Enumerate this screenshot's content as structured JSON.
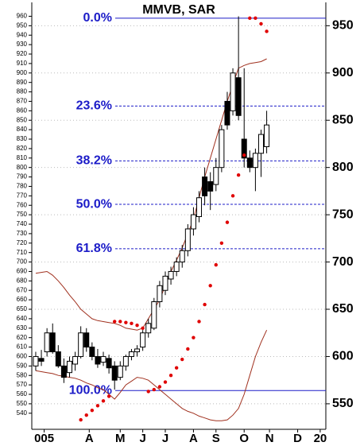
{
  "chart_data": {
    "type": "candlestick",
    "title": "MMVB, SAR",
    "candles": {
      "open": [
        590,
        598,
        605,
        625,
        605,
        590,
        583,
        592,
        600,
        625,
        610,
        600,
        594,
        598,
        590,
        578,
        590,
        600,
        605,
        610,
        625,
        630,
        658,
        670,
        682,
        690,
        700,
        712,
        735,
        748,
        790,
        785,
        782,
        800,
        870,
        860,
        895,
        830,
        810,
        800,
        815,
        822
      ],
      "high": [
        605,
        607,
        630,
        635,
        612,
        598,
        600,
        605,
        632,
        630,
        615,
        608,
        605,
        602,
        595,
        595,
        602,
        608,
        612,
        628,
        640,
        662,
        680,
        690,
        695,
        705,
        718,
        740,
        758,
        775,
        800,
        795,
        810,
        845,
        880,
        905,
        960,
        905,
        818,
        820,
        840,
        860
      ],
      "low": [
        585,
        590,
        600,
        603,
        588,
        572,
        578,
        585,
        598,
        605,
        596,
        588,
        590,
        582,
        565,
        575,
        585,
        596,
        600,
        606,
        620,
        628,
        652,
        665,
        676,
        685,
        694,
        706,
        728,
        742,
        760,
        755,
        775,
        795,
        840,
        855,
        850,
        800,
        795,
        775,
        790,
        815
      ],
      "close": [
        600,
        595,
        625,
        605,
        590,
        578,
        595,
        600,
        625,
        610,
        600,
        592,
        600,
        588,
        575,
        590,
        600,
        605,
        608,
        625,
        635,
        658,
        675,
        685,
        690,
        700,
        712,
        735,
        750,
        768,
        770,
        775,
        800,
        840,
        845,
        900,
        855,
        810,
        800,
        815,
        835,
        845
      ],
      "up_color": "#ffffff",
      "down_color": "#000000"
    },
    "sar": {
      "color": "#e00000",
      "values": [
        null,
        null,
        null,
        null,
        null,
        null,
        null,
        null,
        533,
        538,
        543,
        548,
        553,
        558,
        637,
        637,
        636,
        635,
        633,
        630,
        563,
        565,
        568,
        573,
        580,
        588,
        597,
        608,
        620,
        637,
        655,
        675,
        697,
        720,
        742,
        770,
        792,
        813,
        958,
        958,
        952,
        944
      ]
    },
    "bands": [
      {
        "color": "#a0301e",
        "values": [
          688,
          689,
          690,
          686,
          680,
          673,
          665,
          658,
          650,
          645,
          640,
          638,
          637,
          636,
          635,
          633,
          630,
          629,
          628,
          630,
          640,
          650,
          660,
          675,
          690,
          702,
          715,
          730,
          745,
          768,
          790,
          810,
          830,
          850,
          870,
          888,
          905,
          908,
          910,
          911,
          912,
          915
        ]
      },
      {
        "color": "#a0301e",
        "values": [
          585,
          584,
          583,
          582,
          580,
          579,
          578,
          577,
          575,
          572,
          570,
          567,
          565,
          560,
          555,
          562,
          570,
          574,
          578,
          577,
          575,
          570,
          565,
          560,
          555,
          550,
          545,
          542,
          540,
          537,
          535,
          533,
          532,
          532,
          533,
          538,
          545,
          560,
          580,
          600,
          615,
          628
        ]
      }
    ],
    "fib_levels": [
      {
        "label": "0.0%",
        "price": 958,
        "style": "solid"
      },
      {
        "label": "23.6%",
        "price": 865,
        "style": "dashed"
      },
      {
        "label": "38.2%",
        "price": 807,
        "style": "dashed"
      },
      {
        "label": "50.0%",
        "price": 761,
        "style": "dashed"
      },
      {
        "label": "61.8%",
        "price": 714,
        "style": "dashed"
      },
      {
        "label": "100.0%",
        "price": 564,
        "style": "solid"
      }
    ],
    "fib_color": "#1c1cc8",
    "xlim": [
      -0.7,
      51.5
    ],
    "xticks": [
      {
        "value": 1.5,
        "label": "005"
      },
      {
        "value": 9.5,
        "label": "A"
      },
      {
        "value": 15,
        "label": "M"
      },
      {
        "value": 19,
        "label": "J"
      },
      {
        "value": 23,
        "label": "J"
      },
      {
        "value": 28,
        "label": "A"
      },
      {
        "value": 32,
        "label": "S"
      },
      {
        "value": 37,
        "label": "O"
      },
      {
        "value": 41.5,
        "label": "N"
      },
      {
        "value": 46.5,
        "label": "D"
      },
      {
        "value": 50.5,
        "label": "20"
      }
    ],
    "ylim": [
      523,
      973
    ],
    "yticks": [
      540,
      550,
      560,
      570,
      580,
      590,
      600,
      610,
      620,
      630,
      640,
      650,
      660,
      670,
      680,
      690,
      700,
      710,
      720,
      730,
      740,
      750,
      760,
      770,
      780,
      790,
      800,
      810,
      820,
      830,
      840,
      850,
      860,
      870,
      880,
      890,
      900,
      910,
      920,
      930,
      940,
      950,
      960
    ],
    "y2lim": [
      523,
      973
    ],
    "y2ticks": [
      550,
      600,
      650,
      700,
      750,
      800,
      850,
      900,
      950
    ]
  }
}
